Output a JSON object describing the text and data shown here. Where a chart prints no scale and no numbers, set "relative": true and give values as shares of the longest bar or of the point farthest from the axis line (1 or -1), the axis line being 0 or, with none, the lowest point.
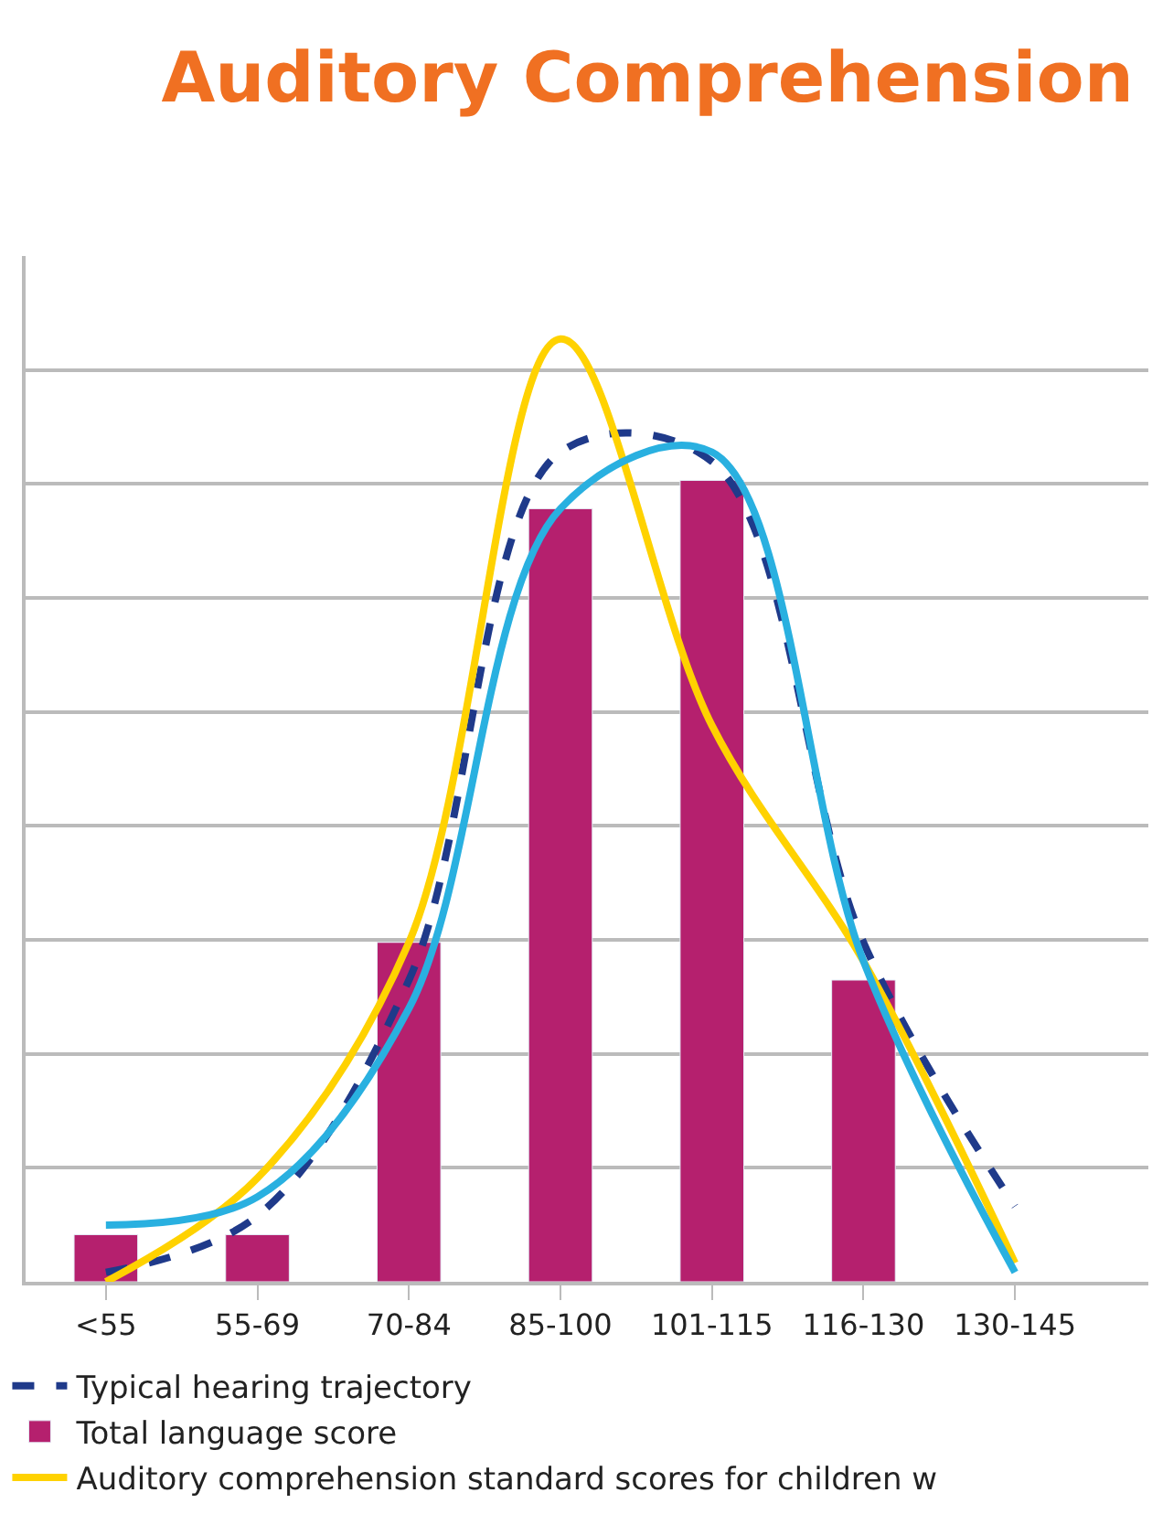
{
  "chart_data": {
    "type": "bar",
    "title": "Auditory Comprehension",
    "relative": true,
    "grid": "y",
    "legend": "bottom",
    "categories": [
      "<55",
      "55-69",
      "70-84",
      "85-100",
      "101-115",
      "116-130",
      "130-145"
    ],
    "series": [
      {
        "name": "Typical hearing trajectory",
        "type": "line",
        "line_style": "dashed",
        "color": "#1f3a8a",
        "values": [
          0.01,
          0.07,
          0.32,
          0.88,
          0.87,
          0.36,
          0.08
        ]
      },
      {
        "name": "Total language score",
        "color": "#b5206e",
        "values": [
          0.05,
          0.05,
          0.36,
          0.82,
          0.85,
          0.32,
          null
        ]
      },
      {
        "name": "Auditory comprehension standard scores for children w",
        "type": "line",
        "line_style": "solid",
        "color": "#ffd200",
        "values": [
          0.0,
          0.11,
          0.36,
          1,
          0.59,
          0.34,
          0.02
        ]
      },
      {
        "type": "line",
        "line_style": "solid",
        "color": "#29b0e0",
        "values": [
          0.06,
          0.09,
          0.29,
          0.82,
          0.88,
          0.34,
          0.01
        ]
      }
    ]
  }
}
